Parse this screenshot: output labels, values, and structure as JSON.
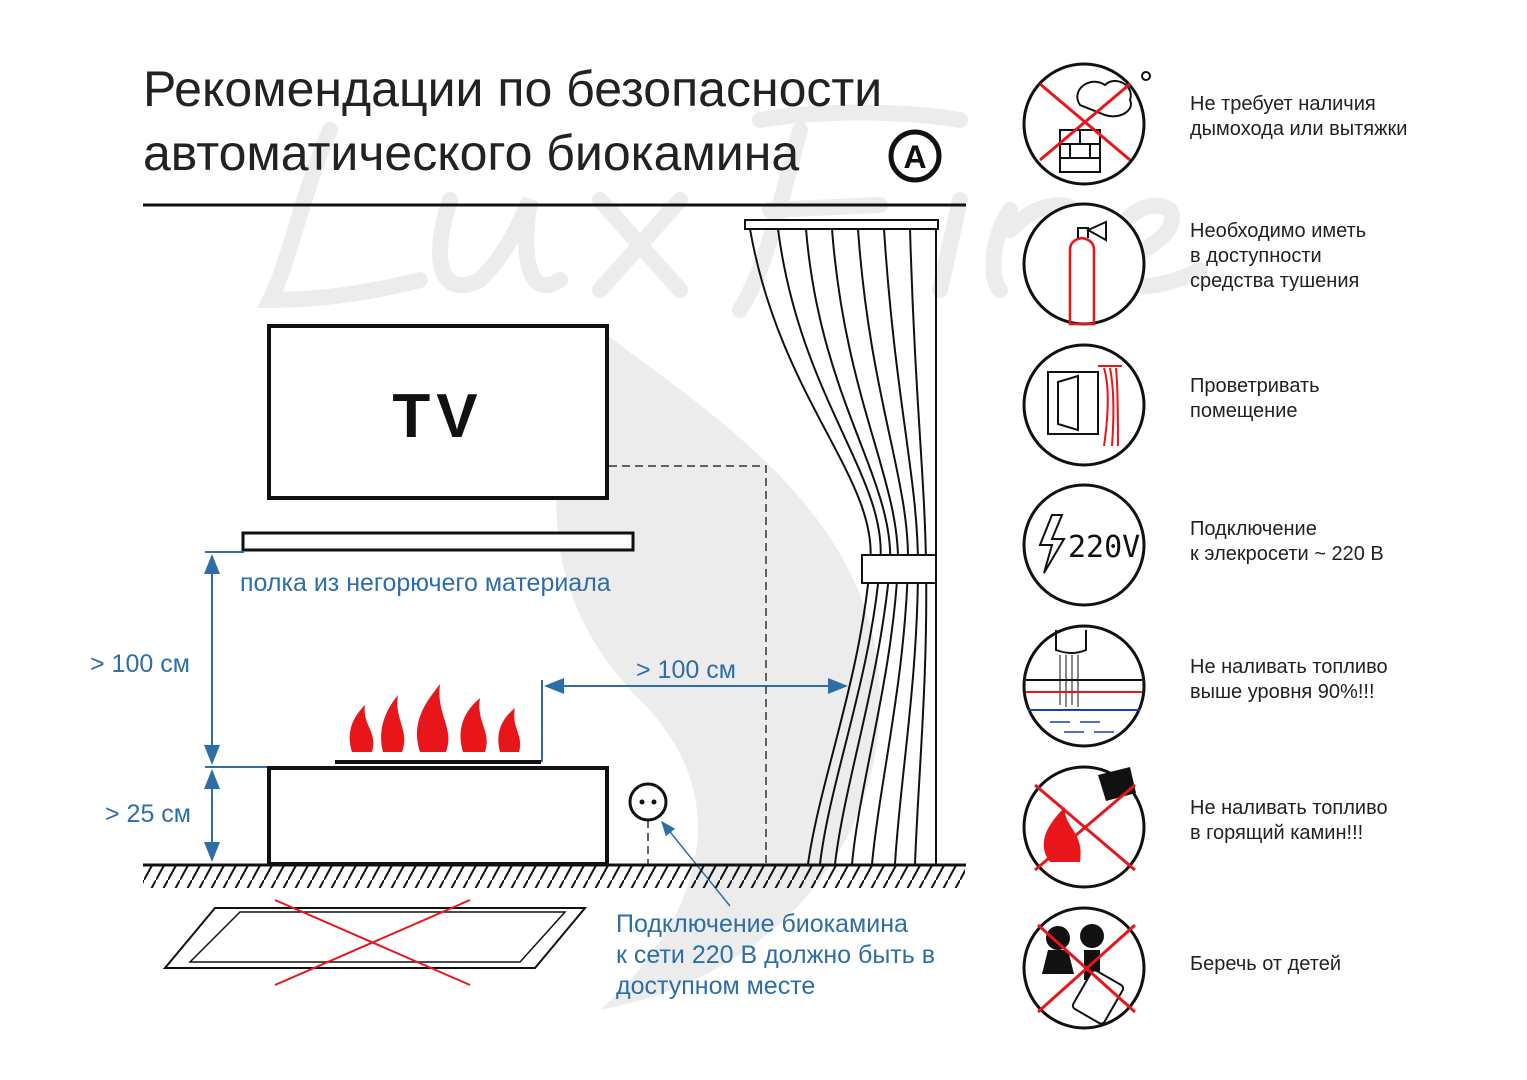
{
  "title": {
    "line1": "Рекомендации по безопасности",
    "line2": "автоматического биокамина",
    "badge": "A"
  },
  "watermark": "LuxFire",
  "diagram": {
    "tv_label": "TV",
    "shelf_label": "полка из негорючего материала",
    "dim_height_shelf": "> 100 см",
    "dim_height_floor": "> 25 см",
    "dim_curtain": "> 100 см",
    "socket_note": [
      "Подключение биокамина",
      "к сети 220 В должно быть в",
      "доступном месте"
    ]
  },
  "colors": {
    "accent_blue": "#2e6ea6",
    "warning_red": "#e8161b",
    "line": "#111111"
  },
  "rules": [
    {
      "icon": "no-chimney-icon",
      "lines": [
        "Не требует наличия",
        "дымохода или вытяжки"
      ]
    },
    {
      "icon": "fire-extinguisher-icon",
      "lines": [
        "Необходимо иметь",
        "в доступности",
        "средства тушения"
      ]
    },
    {
      "icon": "ventilation-window-icon",
      "lines": [
        "Проветривать",
        "помещение"
      ]
    },
    {
      "icon": "power-220v-icon",
      "icon_text": "220V",
      "lines": [
        "Подключение",
        "к элекросети ~ 220 В"
      ]
    },
    {
      "icon": "fuel-level-icon",
      "lines": [
        "Не наливать топливо",
        "выше уровня 90%!!!"
      ]
    },
    {
      "icon": "no-refuel-burning-icon",
      "lines": [
        "Не наливать топливо",
        "в горящий камин!!!"
      ]
    },
    {
      "icon": "keep-from-children-icon",
      "lines": [
        "Беречь от детей"
      ]
    }
  ]
}
